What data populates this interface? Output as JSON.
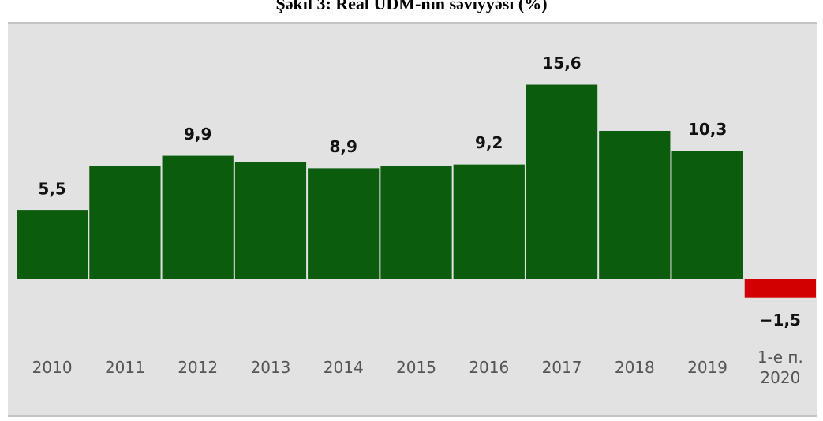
{
  "chart_data": {
    "type": "bar",
    "title": "Şəkil 3: Real ÜDM-nin səviyyəsi (%)",
    "categories": [
      "2010",
      "2011",
      "2012",
      "2013",
      "2014",
      "2015",
      "2016",
      "2017",
      "2018",
      "2019",
      "1-e п. 2020"
    ],
    "values": [
      5.5,
      9.1,
      9.9,
      9.4,
      8.9,
      9.1,
      9.2,
      15.6,
      11.9,
      10.3,
      -1.5
    ],
    "value_labels": [
      "5,5",
      null,
      "9,9",
      null,
      "8,9",
      null,
      "9,2",
      "15,6",
      null,
      "10,3",
      "−1,5"
    ],
    "color": "#0b5c0d",
    "negative_color": "#d20000",
    "ylim": [
      -3,
      17
    ]
  }
}
